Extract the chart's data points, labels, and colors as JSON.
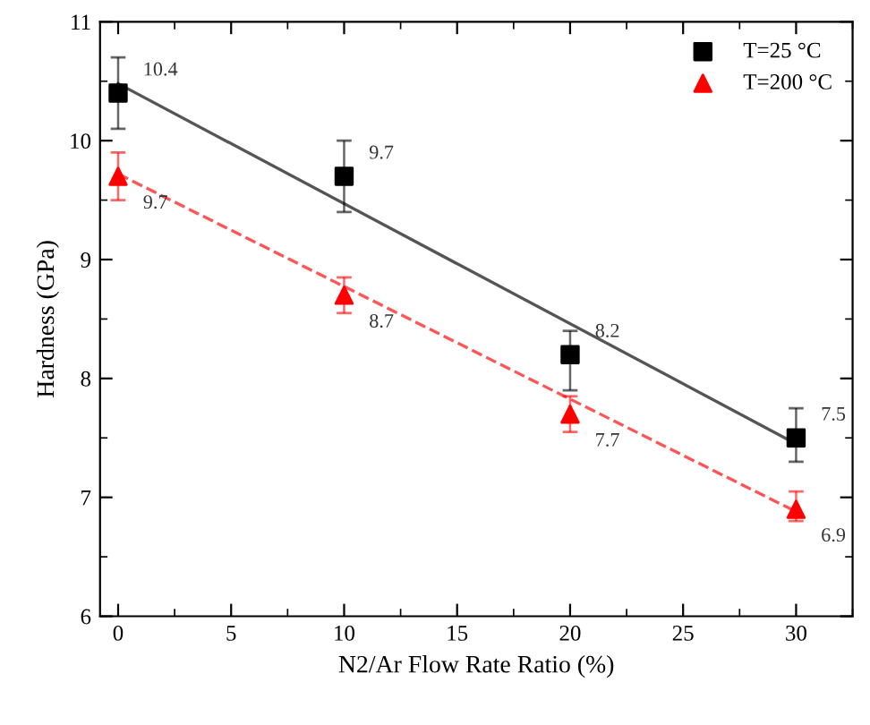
{
  "chart_data": {
    "type": "scatter",
    "xlabel": "N2/Ar Flow Rate Ratio (%)",
    "ylabel": "Hardness (GPa)",
    "xlim": [
      -0.8,
      32.5
    ],
    "ylim": [
      6,
      11
    ],
    "xticks": [
      0,
      5,
      10,
      15,
      20,
      25,
      30
    ],
    "yticks": [
      6,
      7,
      8,
      9,
      10,
      11
    ],
    "grid": false,
    "legend": "top right",
    "series": [
      {
        "name": "T=25 °C",
        "color": "#000000",
        "marker": "square",
        "x": [
          0,
          10,
          20,
          30
        ],
        "values": [
          10.4,
          9.7,
          8.2,
          7.5
        ],
        "value_labels": [
          "10.4",
          "9.7",
          "8.2",
          "7.5"
        ],
        "errors": [
          [
            10.1,
            10.7
          ],
          [
            9.4,
            10.0
          ],
          [
            7.9,
            8.4
          ],
          [
            7.3,
            7.75
          ]
        ]
      },
      {
        "name": "T=200 °C",
        "color": "#ff0000",
        "marker": "triangle",
        "x": [
          0,
          10,
          20,
          30
        ],
        "values": [
          9.7,
          8.7,
          7.7,
          6.9
        ],
        "value_labels": [
          "9.7",
          "8.7",
          "7.7",
          "6.9"
        ],
        "errors": [
          [
            9.5,
            9.9
          ],
          [
            8.55,
            8.85
          ],
          [
            7.55,
            7.85
          ],
          [
            6.8,
            7.05
          ]
        ]
      },
      {
        "type": "line",
        "color": "#555555",
        "line_style": "solid",
        "x": [
          0,
          30
        ],
        "values": [
          10.48,
          7.45
        ]
      },
      {
        "type": "line",
        "color": "#ff5555",
        "line_style": "dashed",
        "x": [
          0,
          30
        ],
        "values": [
          9.72,
          6.88
        ]
      }
    ]
  }
}
